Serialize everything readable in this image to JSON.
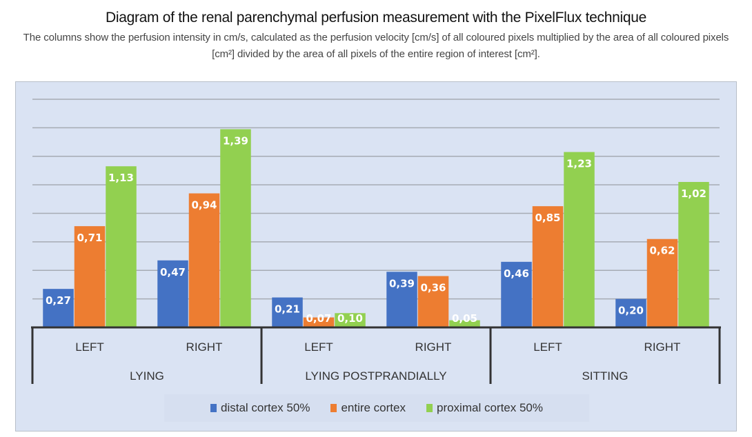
{
  "header": {
    "title": "Diagram of the renal parenchymal perfusion measurement with the PixelFlux technique",
    "subtitle": "The columns show the perfusion intensity in cm/s, calculated as the perfusion velocity [cm/s] of all coloured pixels multiplied by the area of all coloured pixels [cm²] divided by the area of all pixels of the entire region of interest [cm²]."
  },
  "chart_data": {
    "type": "bar",
    "title": "Diagram of the renal parenchymal perfusion measurement with the PixelFlux technique",
    "xlabel": "",
    "ylabel": "",
    "ylim": [
      0,
      1.6
    ],
    "grid": true,
    "grid_step": 0.2,
    "y_axis_labels_visible": false,
    "legend_position": "bottom",
    "groups": [
      {
        "label": "LYING",
        "categories": [
          "LEFT",
          "RIGHT"
        ]
      },
      {
        "label": "LYING POSTPRANDIALLY",
        "categories": [
          "LEFT",
          "RIGHT"
        ]
      },
      {
        "label": "SITTING",
        "categories": [
          "LEFT",
          "RIGHT"
        ]
      }
    ],
    "categories": [
      "LEFT",
      "RIGHT",
      "LEFT",
      "RIGHT",
      "LEFT",
      "RIGHT"
    ],
    "series": [
      {
        "name": "distal cortex 50%",
        "color": "#4472c4",
        "values": [
          0.27,
          0.47,
          0.21,
          0.39,
          0.46,
          0.2
        ],
        "labels": [
          "0,27",
          "0,47",
          "0,21",
          "0,39",
          "0,46",
          "0,20"
        ]
      },
      {
        "name": "entire cortex",
        "color": "#ed7d31",
        "values": [
          0.71,
          0.94,
          0.07,
          0.36,
          0.85,
          0.62
        ],
        "labels": [
          "0,71",
          "0,94",
          "0,07",
          "0,36",
          "0,85",
          "0,62"
        ]
      },
      {
        "name": "proximal cortex 50%",
        "color": "#92d050",
        "values": [
          1.13,
          1.39,
          0.1,
          0.05,
          1.23,
          1.02
        ],
        "labels": [
          "1,13",
          "1,39",
          "0,10",
          "0,05",
          "1,23",
          "1,02"
        ]
      }
    ]
  },
  "colors": {
    "plot_background": "#dae3f3",
    "gridline": "#a6abb3",
    "axis": "#333333",
    "data_label": "#ffffff"
  }
}
